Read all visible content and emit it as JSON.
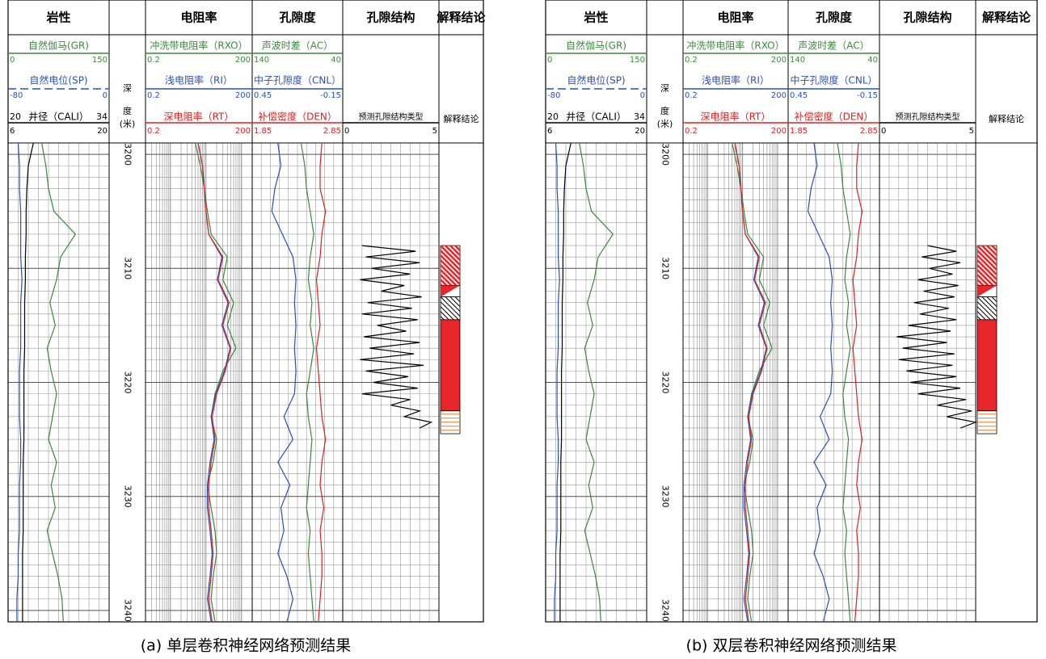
{
  "chart_data": [
    {
      "type": "well-log",
      "caption": "(a) 单层卷积神经网络预测结果",
      "ylim": [
        3199,
        3241
      ],
      "yticks": [
        3200,
        3210,
        3220,
        3230,
        3240
      ],
      "depth": [
        3199,
        3201,
        3203,
        3205,
        3207,
        3209,
        3211,
        3213,
        3215,
        3217,
        3219,
        3221,
        3223,
        3225,
        3227,
        3229,
        3231,
        3233,
        3235,
        3237,
        3239,
        3241
      ],
      "tracks": [
        {
          "title": "岩性",
          "curves": [
            {
              "name": "自然伽马(GR)",
              "color": "#3a8a3a",
              "lim": [
                0,
                150
              ],
              "values": [
                50,
                56,
                60,
                68,
                100,
                78,
                72,
                62,
                70,
                58,
                64,
                72,
                66,
                60,
                72,
                64,
                70,
                58,
                66,
                74,
                80,
                82
              ]
            },
            {
              "name": "自然电位(SP)",
              "color": "#2a4fbf",
              "lim": [
                -80,
                0
              ],
              "dashed": true,
              "values": [
                -72,
                -71,
                -71,
                -70,
                -70,
                -70,
                -69,
                -70,
                -70,
                -70,
                -71,
                -71,
                -71,
                -70,
                -70,
                -71,
                -71,
                -71,
                -72,
                -72,
                -73,
                -73
              ]
            },
            {
              "name": "井径（CALI）",
              "color": "#000000",
              "label_lim": [
                20,
                34
              ],
              "lim": [
                6,
                20
              ],
              "values": [
                9.5,
                8.8,
                8.6,
                8.5,
                8.5,
                8.4,
                8.4,
                8.3,
                8.3,
                8.3,
                8.2,
                8.2,
                8.2,
                8.2,
                8.1,
                8.1,
                8.1,
                8.1,
                8.0,
                8.0,
                8.0,
                8.0
              ]
            }
          ]
        },
        {
          "labels": [
            "深",
            "度",
            "(米)"
          ]
        },
        {
          "title": "电阻率",
          "log_scale": true,
          "curves": [
            {
              "name": "冲洗带电阻率（RXO）",
              "color": "#3a8a3a",
              "lim": [
                0.2,
                200
              ],
              "values": [
                5,
                7,
                9,
                11,
                14,
                40,
                30,
                60,
                40,
                70,
                30,
                18,
                14,
                20,
                16,
                11,
                14,
                18,
                20,
                16,
                14,
                18
              ]
            },
            {
              "name": "浅电阻率（RI）",
              "color": "#2a4fbf",
              "lim": [
                0.2,
                200
              ],
              "values": [
                6,
                8,
                9,
                10,
                12,
                28,
                21,
                42,
                28,
                48,
                33,
                19,
                14,
                17,
                13,
                11,
                11,
                13,
                15,
                13,
                11,
                14
              ]
            },
            {
              "name": "深电阻率（RT）",
              "color": "#e02020",
              "lim": [
                0.2,
                200
              ],
              "values": [
                6,
                8,
                9,
                10,
                12,
                30,
                22,
                45,
                30,
                50,
                35,
                20,
                15,
                18,
                14,
                12,
                12,
                14,
                16,
                14,
                12,
                15
              ]
            }
          ]
        },
        {
          "title": "孔隙度",
          "curves": [
            {
              "name": "声波时差（AC）",
              "color": "#3a8a3a",
              "lim": [
                140,
                40
              ],
              "values": [
                86,
                82,
                80,
                76,
                72,
                76,
                78,
                74,
                76,
                72,
                76,
                80,
                78,
                74,
                76,
                78,
                80,
                76,
                78,
                76,
                74,
                72
              ]
            },
            {
              "name": "中子孔隙度（CNL）",
              "color": "#2a4fbf",
              "lim": [
                0.45,
                -0.15
              ],
              "values": [
                0.28,
                0.26,
                0.3,
                0.32,
                0.25,
                0.18,
                0.16,
                0.17,
                0.16,
                0.17,
                0.16,
                0.17,
                0.24,
                0.18,
                0.28,
                0.2,
                0.26,
                0.24,
                0.28,
                0.22,
                0.18,
                0.22
              ]
            },
            {
              "name": "补偿密度（DEN）",
              "color": "#e02020",
              "lim": [
                1.85,
                2.85
              ],
              "values": [
                2.62,
                2.6,
                2.6,
                2.66,
                2.62,
                2.6,
                2.56,
                2.58,
                2.6,
                2.56,
                2.58,
                2.6,
                2.62,
                2.66,
                2.62,
                2.6,
                2.64,
                2.6,
                2.62,
                2.62,
                2.6,
                2.58
              ]
            }
          ]
        },
        {
          "title": "孔隙结构",
          "curves": [
            {
              "name": "预测孔隙结构类型",
              "color": "#000000",
              "lim": [
                0,
                5
              ],
              "depth": [
                3208,
                3208.5,
                3209,
                3209.5,
                3210,
                3210.5,
                3211,
                3211.5,
                3212,
                3212.5,
                3213,
                3213.5,
                3214,
                3214.5,
                3215,
                3215.5,
                3216,
                3216.5,
                3217,
                3217.5,
                3218,
                3218.5,
                3219,
                3219.5,
                3220,
                3220.5,
                3221,
                3221.5,
                3222,
                3222.5,
                3223,
                3223.5,
                3224
              ],
              "values": [
                1.0,
                3.8,
                1.2,
                4.0,
                1.5,
                3.5,
                0.9,
                3.2,
                2.0,
                4.1,
                1.3,
                3.6,
                1.0,
                3.9,
                1.8,
                3.3,
                1.1,
                4.0,
                1.4,
                3.7,
                0.9,
                4.2,
                1.2,
                3.4,
                1.6,
                3.9,
                1.0,
                3.5,
                2.5,
                4.0,
                3.2,
                4.6,
                4.0
              ]
            }
          ]
        },
        {
          "title": "解释结论",
          "label": "解释结论",
          "intervals": [
            {
              "top": 3208,
              "base": 3211.5,
              "color": "#e8262a",
              "fill": "hatch"
            },
            {
              "top": 3211.5,
              "base": 3212.5,
              "color": "#e8262a",
              "fill": "triangle"
            },
            {
              "top": 3212.5,
              "base": 3214.5,
              "color": "#000000",
              "fill": "hatch"
            },
            {
              "top": 3214.5,
              "base": 3222.5,
              "color": "#e8262a",
              "fill": "solid"
            },
            {
              "top": 3222.5,
              "base": 3224.5,
              "color": "#e87a2a",
              "fill": "lines"
            }
          ]
        }
      ]
    },
    {
      "type": "well-log",
      "caption": "(b) 双层卷积神经网络预测结果",
      "ylim": [
        3199,
        3241
      ],
      "yticks": [
        3200,
        3210,
        3220,
        3230,
        3240
      ],
      "depth": [
        3199,
        3201,
        3203,
        3205,
        3207,
        3209,
        3211,
        3213,
        3215,
        3217,
        3219,
        3221,
        3223,
        3225,
        3227,
        3229,
        3231,
        3233,
        3235,
        3237,
        3239,
        3241
      ],
      "tracks": [
        {
          "title": "岩性",
          "curves": [
            {
              "name": "自然伽马(GR)",
              "color": "#3a8a3a",
              "lim": [
                0,
                150
              ],
              "values": [
                50,
                56,
                60,
                68,
                100,
                78,
                72,
                62,
                70,
                58,
                64,
                72,
                66,
                60,
                72,
                64,
                70,
                58,
                66,
                74,
                80,
                82
              ]
            },
            {
              "name": "自然电位(SP)",
              "color": "#2a4fbf",
              "lim": [
                -80,
                0
              ],
              "dashed": true,
              "values": [
                -72,
                -71,
                -71,
                -70,
                -70,
                -70,
                -69,
                -70,
                -70,
                -70,
                -71,
                -71,
                -71,
                -70,
                -70,
                -71,
                -71,
                -71,
                -72,
                -72,
                -73,
                -73
              ]
            },
            {
              "name": "井径（CALI）",
              "color": "#000000",
              "label_lim": [
                20,
                34
              ],
              "lim": [
                6,
                20
              ],
              "values": [
                9.5,
                8.8,
                8.6,
                8.5,
                8.5,
                8.4,
                8.4,
                8.3,
                8.3,
                8.3,
                8.2,
                8.2,
                8.2,
                8.2,
                8.1,
                8.1,
                8.1,
                8.1,
                8.0,
                8.0,
                8.0,
                8.0
              ]
            }
          ]
        },
        {
          "labels": [
            "深",
            "度",
            "(米)"
          ]
        },
        {
          "title": "电阻率",
          "log_scale": true,
          "curves": [
            {
              "name": "冲洗带电阻率（RXO）",
              "color": "#3a8a3a",
              "lim": [
                0.2,
                200
              ],
              "values": [
                5,
                7,
                9,
                11,
                14,
                40,
                30,
                60,
                40,
                70,
                30,
                18,
                14,
                20,
                16,
                11,
                14,
                18,
                20,
                16,
                14,
                18
              ]
            },
            {
              "name": "浅电阻率（RI）",
              "color": "#2a4fbf",
              "lim": [
                0.2,
                200
              ],
              "values": [
                6,
                8,
                9,
                10,
                12,
                28,
                21,
                42,
                28,
                48,
                33,
                19,
                14,
                17,
                13,
                11,
                11,
                13,
                15,
                13,
                11,
                14
              ]
            },
            {
              "name": "深电阻率（RT）",
              "color": "#e02020",
              "lim": [
                0.2,
                200
              ],
              "values": [
                6,
                8,
                9,
                10,
                12,
                30,
                22,
                45,
                30,
                50,
                35,
                20,
                15,
                18,
                14,
                12,
                12,
                14,
                16,
                14,
                12,
                15
              ]
            }
          ]
        },
        {
          "title": "孔隙度",
          "curves": [
            {
              "name": "声波时差（AC）",
              "color": "#3a8a3a",
              "lim": [
                140,
                40
              ],
              "values": [
                86,
                82,
                80,
                76,
                72,
                76,
                78,
                74,
                76,
                72,
                76,
                80,
                78,
                74,
                76,
                78,
                80,
                76,
                78,
                76,
                74,
                72
              ]
            },
            {
              "name": "中子孔隙度（CNL）",
              "color": "#2a4fbf",
              "lim": [
                0.45,
                -0.15
              ],
              "values": [
                0.28,
                0.26,
                0.3,
                0.32,
                0.25,
                0.18,
                0.16,
                0.17,
                0.16,
                0.17,
                0.16,
                0.17,
                0.24,
                0.18,
                0.28,
                0.2,
                0.26,
                0.24,
                0.28,
                0.22,
                0.18,
                0.22
              ]
            },
            {
              "name": "补偿密度（DEN）",
              "color": "#e02020",
              "lim": [
                1.85,
                2.85
              ],
              "values": [
                2.62,
                2.6,
                2.6,
                2.66,
                2.62,
                2.6,
                2.56,
                2.58,
                2.6,
                2.56,
                2.58,
                2.6,
                2.62,
                2.66,
                2.62,
                2.6,
                2.64,
                2.6,
                2.62,
                2.62,
                2.6,
                2.58
              ]
            }
          ]
        },
        {
          "title": "孔隙结构",
          "curves": [
            {
              "name": "预测孔隙结构类型",
              "color": "#000000",
              "lim": [
                0,
                5
              ],
              "depth": [
                3208,
                3208.5,
                3209,
                3209.5,
                3210,
                3210.5,
                3211,
                3211.5,
                3212,
                3212.5,
                3213,
                3213.5,
                3214,
                3214.5,
                3215,
                3215.5,
                3216,
                3216.5,
                3217,
                3217.5,
                3218,
                3218.5,
                3219,
                3219.5,
                3220,
                3220.5,
                3221,
                3221.5,
                3222,
                3222.5,
                3223,
                3223.5,
                3224
              ],
              "values": [
                2.5,
                4.0,
                2.2,
                4.2,
                2.6,
                3.8,
                2.0,
                4.1,
                2.3,
                3.9,
                1.8,
                3.6,
                2.1,
                4.0,
                1.5,
                3.7,
                0.9,
                3.5,
                1.2,
                3.9,
                1.0,
                3.8,
                1.4,
                4.0,
                1.6,
                4.2,
                2.0,
                4.5,
                3.0,
                4.8,
                3.5,
                5.0,
                4.2
              ]
            }
          ]
        },
        {
          "title": "解释结论",
          "label": "解释结论",
          "intervals": [
            {
              "top": 3208,
              "base": 3211.5,
              "color": "#e8262a",
              "fill": "hatch"
            },
            {
              "top": 3211.5,
              "base": 3212.5,
              "color": "#e8262a",
              "fill": "triangle"
            },
            {
              "top": 3212.5,
              "base": 3214.5,
              "color": "#000000",
              "fill": "hatch"
            },
            {
              "top": 3214.5,
              "base": 3222.5,
              "color": "#e8262a",
              "fill": "solid"
            },
            {
              "top": 3222.5,
              "base": 3224.5,
              "color": "#e87a2a",
              "fill": "lines"
            }
          ]
        }
      ]
    }
  ]
}
